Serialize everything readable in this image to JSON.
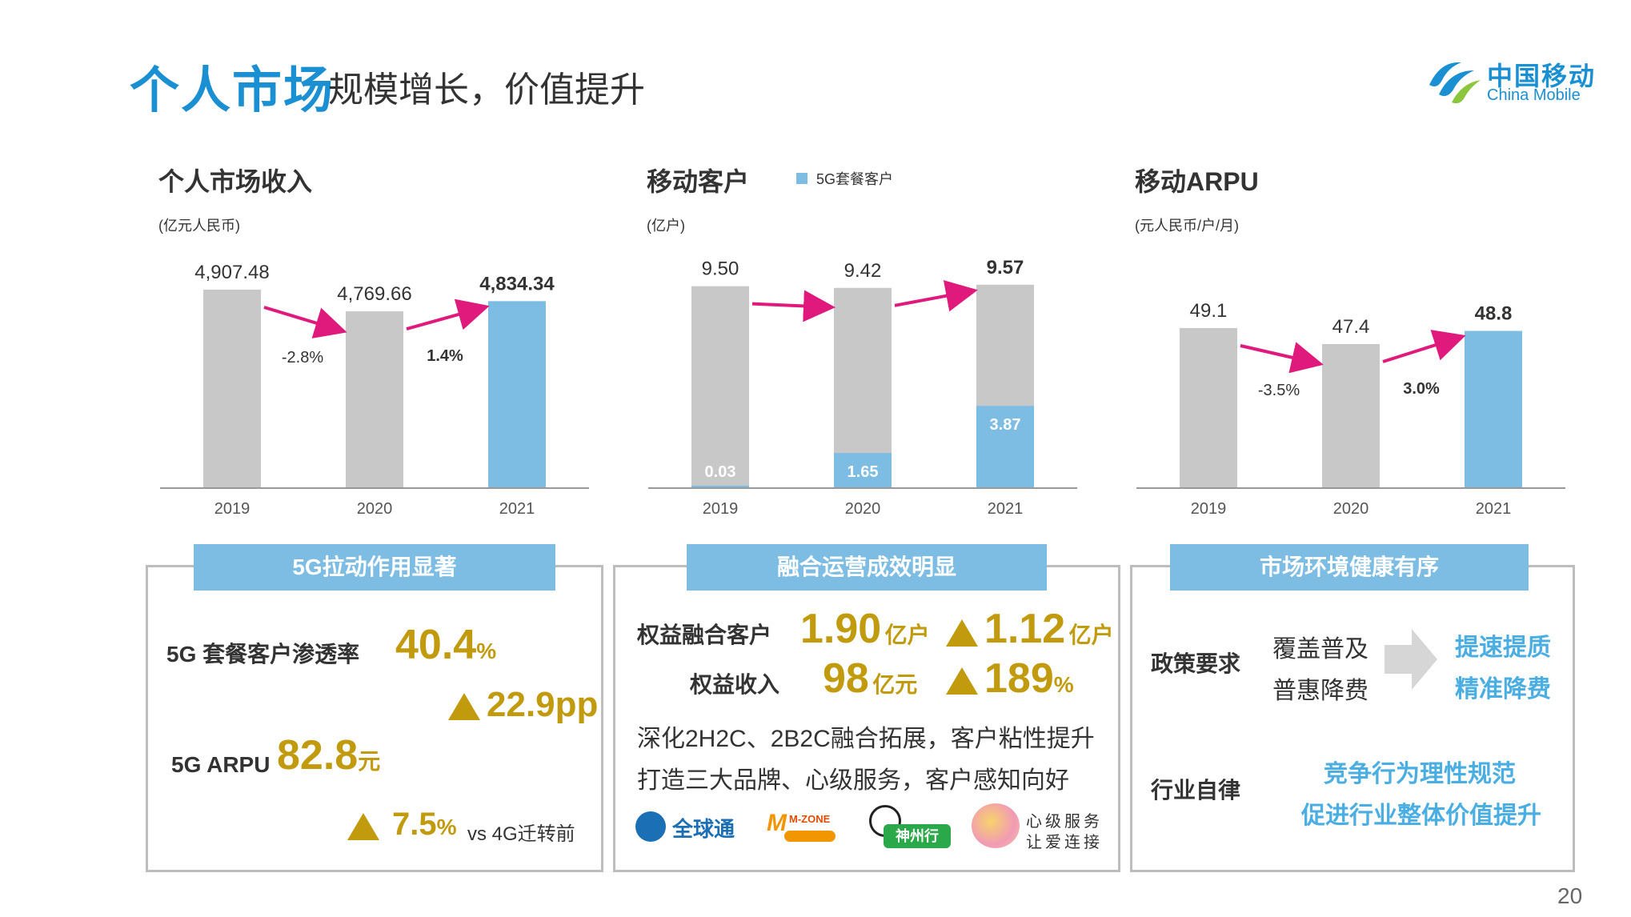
{
  "header": {
    "title_main": "个人市场",
    "title_sub": "规模增长，价值提升"
  },
  "logo": {
    "cn": "中国移动",
    "en": "China Mobile"
  },
  "charts": {
    "revenue": {
      "title": "个人市场收入",
      "unit": "(亿元人民币)"
    },
    "customers": {
      "title": "移动客户",
      "unit": "(亿户)",
      "legend": "5G套餐客户"
    },
    "arpu": {
      "title": "移动ARPU",
      "unit": "(元人民币/户/月)"
    }
  },
  "chart_data": [
    {
      "type": "bar",
      "categories": [
        "2019",
        "2020",
        "2021"
      ],
      "values": [
        4907.48,
        4769.66,
        4834.34
      ],
      "labels": [
        "4,907.48",
        "4,769.66",
        "4,834.34"
      ],
      "changes": [
        "-2.8%",
        "1.4%"
      ],
      "highlight_last": true,
      "ylim": [
        0,
        5000
      ]
    },
    {
      "type": "bar",
      "categories": [
        "2019",
        "2020",
        "2021"
      ],
      "values": [
        9.5,
        9.42,
        9.57
      ],
      "labels": [
        "9.50",
        "9.42",
        "9.57"
      ],
      "series": [
        {
          "name": "5G套餐客户",
          "values": [
            0.03,
            1.65,
            3.87
          ],
          "labels": [
            "0.03",
            "1.65",
            "3.87"
          ]
        }
      ],
      "ylim": [
        0,
        10
      ]
    },
    {
      "type": "bar",
      "categories": [
        "2019",
        "2020",
        "2021"
      ],
      "values": [
        49.1,
        47.4,
        48.8
      ],
      "labels": [
        "49.1",
        "47.4",
        "48.8"
      ],
      "changes": [
        "-3.5%",
        "3.0%"
      ],
      "highlight_last": true,
      "ylim": [
        0,
        60
      ]
    }
  ],
  "box1": {
    "header": "5G拉动作用显著",
    "row1_label": "5G 套餐客户渗透率",
    "row1_value": "40.4",
    "row1_unit": "%",
    "row1_change": "22.9pp",
    "row2_label": "5G ARPU",
    "row2_value": "82.8",
    "row2_unit": "元",
    "row2_change": "7.5",
    "row2_change_unit": "%",
    "row2_note": "vs 4G迁转前"
  },
  "box2": {
    "header": "融合运营成效明显",
    "row1_label": "权益融合客户",
    "row1_value": "1.90",
    "row1_unit": "亿户",
    "row1_change": "1.12",
    "row1_change_unit": "亿户",
    "row2_label": "权益收入",
    "row2_value": "98",
    "row2_unit": "亿元",
    "row2_change": "189",
    "row2_change_unit": "%",
    "line1": "深化2H2C、2B2C融合拓展，客户粘性提升",
    "line2": "打造三大品牌、心级服务，客户感知向好",
    "brands": {
      "global": "全球通",
      "mzone": "M-ZONE",
      "szx": "神州行",
      "heart_1": "心级服务",
      "heart_2": "让爱连接"
    }
  },
  "box3": {
    "header": "市场环境健康有序",
    "policy_label": "政策要求",
    "policy_left1": "覆盖普及",
    "policy_left2": "普惠降费",
    "policy_right1": "提速提质",
    "policy_right2": "精准降费",
    "industry_label": "行业自律",
    "industry_line1": "竞争行为理性规范",
    "industry_line2": "促进行业整体价值提升"
  },
  "colors": {
    "gray_bar": "#c8c8c8",
    "blue_bar": "#7dbde4",
    "arrow": "#e0197d",
    "gold": "#c19a0e",
    "title_blue": "#1a8fd2"
  },
  "page_number": "20"
}
